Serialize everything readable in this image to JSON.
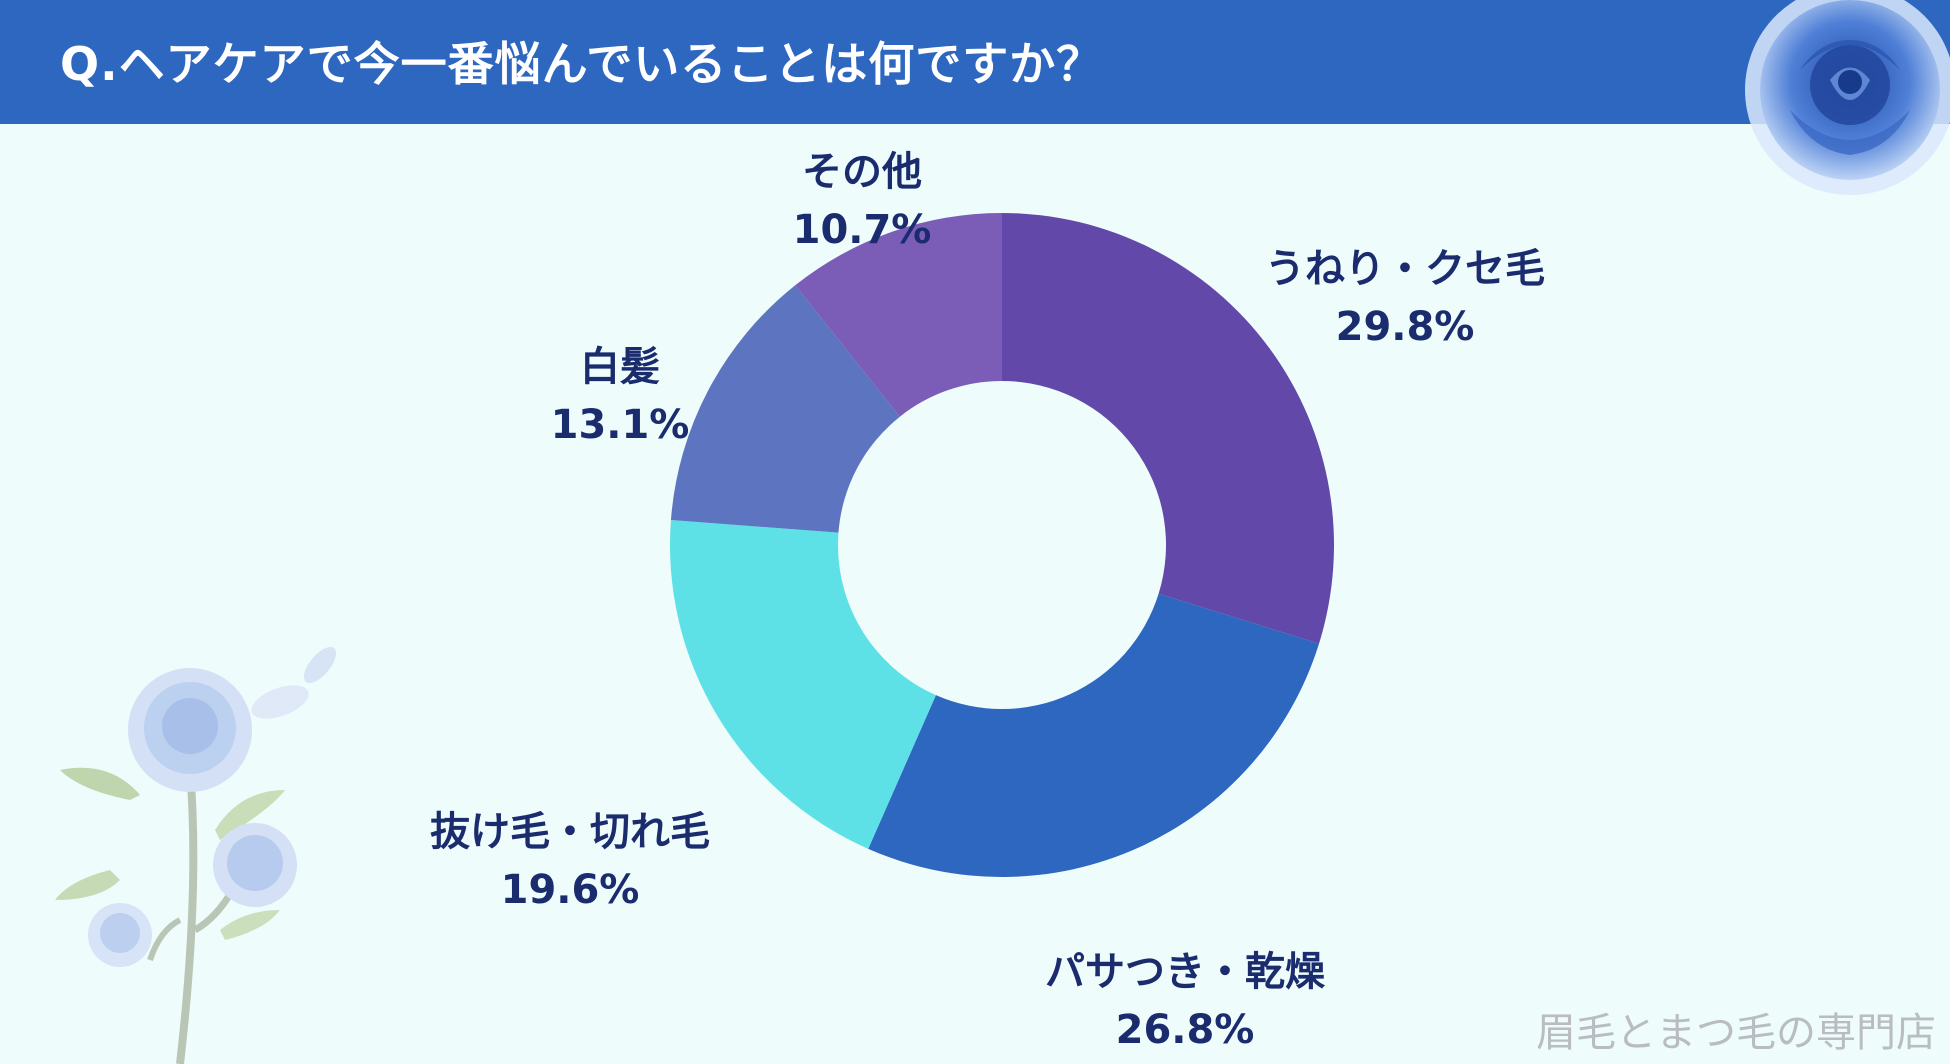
{
  "header": {
    "title": "Q.ヘアケアで今一番悩んでいることは何ですか？"
  },
  "footer": {
    "brand": "眉毛とまつ毛の専門店"
  },
  "chart_data": {
    "type": "pie",
    "donut": true,
    "title": "",
    "slices": [
      {
        "label": "うねり・クセ毛",
        "value": 29.8,
        "value_label": "29.8%",
        "color": "#6248a8"
      },
      {
        "label": "パサつき・乾燥",
        "value": 26.8,
        "value_label": "26.8%",
        "color": "#2d67c0"
      },
      {
        "label": "抜け毛・切れ毛",
        "value": 19.6,
        "value_label": "19.6%",
        "color": "#5ee1e6"
      },
      {
        "label": "白髪",
        "value": 13.1,
        "value_label": "13.1%",
        "color": "#5d75c1"
      },
      {
        "label": "その他",
        "value": 10.7,
        "value_label": "10.7%",
        "color": "#7b5cb7"
      }
    ],
    "start_angle": "12 o'clock",
    "direction": "clockwise"
  },
  "colors": {
    "header_bg": "#2d67c0",
    "page_bg": "#eefcfc",
    "label_text": "#1b2c6e"
  },
  "decorations": {
    "top_right": "blue-rose-icon",
    "bottom_left": "blue-rose-branch-icon"
  }
}
